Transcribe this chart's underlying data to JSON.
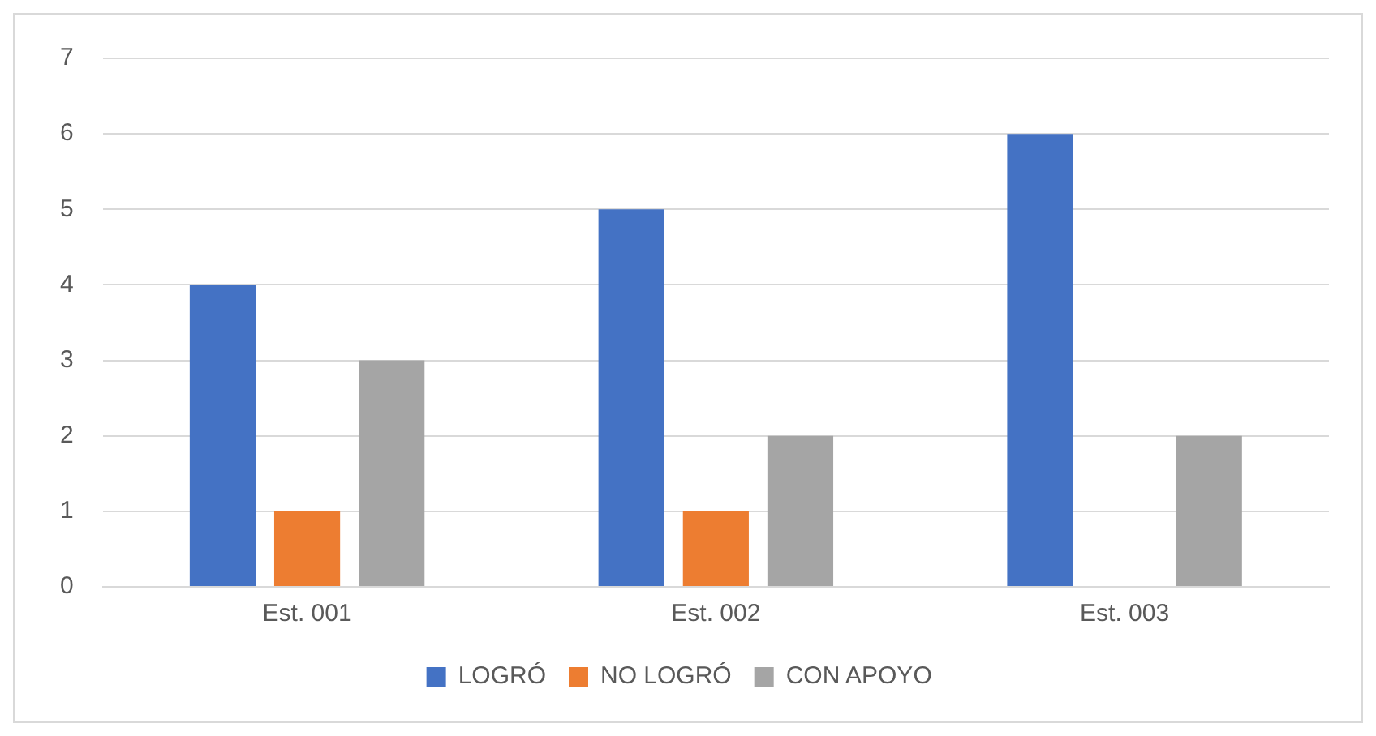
{
  "chart_data": {
    "type": "bar",
    "categories": [
      "Est. 001",
      "Est. 002",
      "Est. 003"
    ],
    "series": [
      {
        "name": "LOGRÓ",
        "color": "#4472c4",
        "values": [
          4,
          5,
          6
        ]
      },
      {
        "name": "NO LOGRÓ",
        "color": "#ed7d31",
        "values": [
          1,
          1,
          0
        ]
      },
      {
        "name": "CON APOYO",
        "color": "#a5a5a5",
        "values": [
          3,
          2,
          2
        ]
      }
    ],
    "ylim": [
      0,
      7
    ],
    "yticks": [
      0,
      1,
      2,
      3,
      4,
      5,
      6,
      7
    ],
    "grid": "y",
    "legend": "bottom"
  }
}
